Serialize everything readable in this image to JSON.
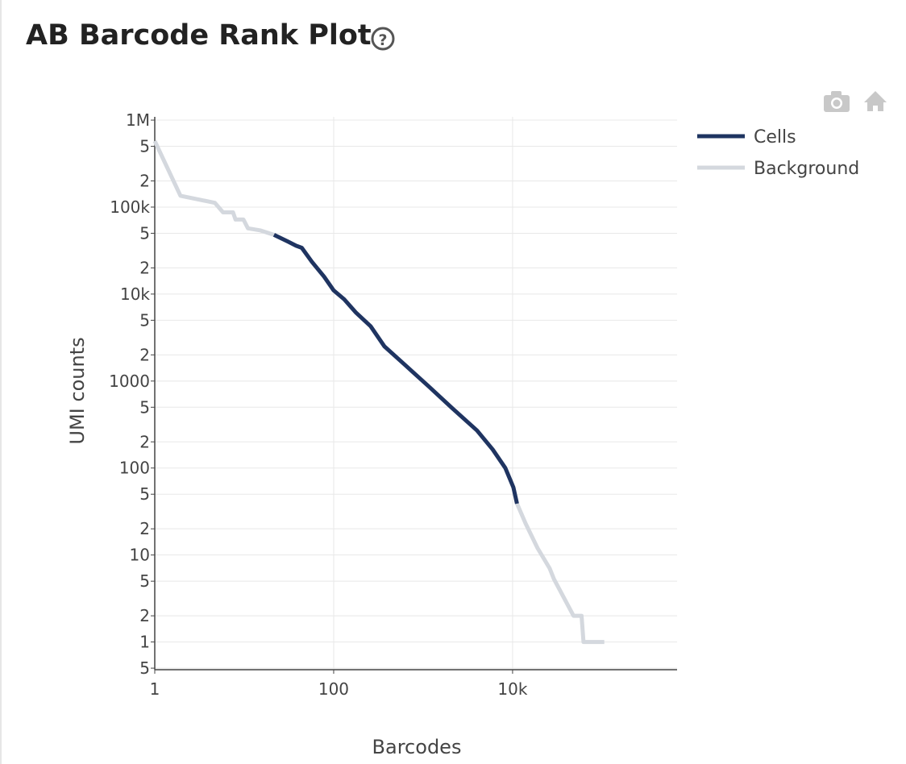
{
  "chart_data": {
    "type": "line",
    "title": "AB Barcode Rank Plot",
    "x_label": "Barcodes",
    "y_label": "UMI counts",
    "xscale": "log",
    "yscale": "log",
    "grid": true,
    "legend": "right",
    "xlim": [
      1,
      690000
    ],
    "ylim": [
      0.48,
      1090000
    ],
    "xticks": [
      1,
      100,
      {
        "value": 10000,
        "label": "10k"
      }
    ],
    "yticks": [
      {
        "value": 1000000,
        "label": "1M"
      },
      {
        "value": 500000,
        "label": "5"
      },
      {
        "value": 200000,
        "label": "2"
      },
      {
        "value": 100000,
        "label": "100k"
      },
      {
        "value": 50000,
        "label": "5"
      },
      {
        "value": 20000,
        "label": "2"
      },
      {
        "value": 10000,
        "label": "10k"
      },
      {
        "value": 5000,
        "label": "5"
      },
      {
        "value": 2000,
        "label": "2"
      },
      1000,
      {
        "value": 500,
        "label": "5"
      },
      {
        "value": 200,
        "label": "2"
      },
      100,
      {
        "value": 50,
        "label": "5"
      },
      {
        "value": 20,
        "label": "2"
      },
      10,
      5,
      2,
      1,
      {
        "value": 0.5,
        "label": "5"
      }
    ],
    "series": [
      {
        "name": "Cells",
        "color": "#1f3461",
        "x": [
          21.5,
          31,
          38,
          44,
          57,
          78,
          100,
          131,
          178,
          259,
          370,
          620,
          1150,
          2150,
          4000,
          6000,
          8300,
          10200,
          11200
        ],
        "values": [
          48000,
          40000,
          36000,
          34000,
          23500,
          15900,
          11000,
          8700,
          6100,
          4270,
          2500,
          1550,
          870,
          480,
          270,
          163,
          100,
          60,
          39
        ]
      },
      {
        "name": "Background",
        "color": "#d4d8de",
        "x": [
          1,
          1.94,
          4.7,
          5.8,
          7.5,
          8,
          9.8,
          11,
          15,
          21.5,
          null,
          11200,
          14000,
          19000,
          26000,
          29000,
          48000,
          59000,
          62000,
          106000
        ],
        "values": [
          575000,
          135000,
          112000,
          87000,
          87000,
          72000,
          72000,
          57000,
          54000,
          48000,
          null,
          39,
          23,
          12,
          7,
          5.3,
          2,
          2,
          1,
          1
        ]
      }
    ]
  }
}
